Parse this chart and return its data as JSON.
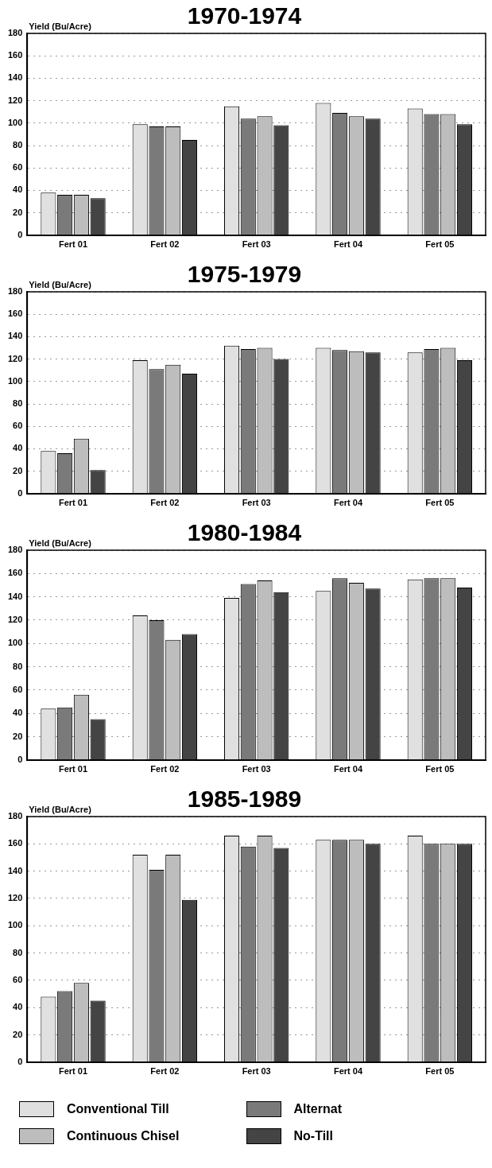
{
  "chart_data": [
    {
      "type": "bar",
      "title": "1970-1974",
      "ylabel": "Yield (Bu/Acre)",
      "categories": [
        "Fert 01",
        "Fert 02",
        "Fert 03",
        "Fert 04",
        "Fert 05"
      ],
      "ylim": [
        0,
        180
      ],
      "yticks": [
        0,
        20,
        40,
        60,
        80,
        100,
        120,
        140,
        160,
        180
      ],
      "grid": "y",
      "legend": false,
      "series": [
        {
          "color": "#e0e0e0",
          "values": [
            38,
            99,
            115,
            118,
            113
          ]
        },
        {
          "color": "#7a7a7a",
          "values": [
            36,
            97,
            104,
            109,
            108
          ]
        },
        {
          "color": "#bdbdbd",
          "values": [
            36,
            97,
            106,
            106,
            108
          ]
        },
        {
          "color": "#444444",
          "values": [
            33,
            85,
            98,
            104,
            99
          ]
        }
      ]
    },
    {
      "type": "bar",
      "title": "1975-1979",
      "ylabel": "Yield (Bu/Acre)",
      "categories": [
        "Fert 01",
        "Fert 02",
        "Fert 03",
        "Fert 04",
        "Fert 05"
      ],
      "ylim": [
        0,
        180
      ],
      "yticks": [
        0,
        20,
        40,
        60,
        80,
        100,
        120,
        140,
        160,
        180
      ],
      "grid": "y",
      "legend": false,
      "series": [
        {
          "color": "#e0e0e0",
          "values": [
            38,
            119,
            132,
            130,
            126
          ]
        },
        {
          "color": "#7a7a7a",
          "values": [
            36,
            111,
            129,
            128,
            129
          ]
        },
        {
          "color": "#bdbdbd",
          "values": [
            49,
            115,
            130,
            127,
            130
          ]
        },
        {
          "color": "#444444",
          "values": [
            21,
            107,
            120,
            126,
            119
          ]
        }
      ]
    },
    {
      "type": "bar",
      "title": "1980-1984",
      "ylabel": "Yield (Bu/Acre)",
      "categories": [
        "Fert 01",
        "Fert 02",
        "Fert 03",
        "Fert 04",
        "Fert 05"
      ],
      "ylim": [
        0,
        180
      ],
      "yticks": [
        0,
        20,
        40,
        60,
        80,
        100,
        120,
        140,
        160,
        180
      ],
      "grid": "y",
      "legend": false,
      "series": [
        {
          "color": "#e0e0e0",
          "values": [
            44,
            124,
            139,
            145,
            155
          ]
        },
        {
          "color": "#7a7a7a",
          "values": [
            45,
            120,
            151,
            156,
            156
          ]
        },
        {
          "color": "#bdbdbd",
          "values": [
            56,
            103,
            154,
            152,
            156
          ]
        },
        {
          "color": "#444444",
          "values": [
            35,
            108,
            144,
            147,
            148
          ]
        }
      ]
    },
    {
      "type": "bar",
      "title": "1985-1989",
      "ylabel": "Yield (Bu/Acre)",
      "categories": [
        "Fert 01",
        "Fert 02",
        "Fert 03",
        "Fert 04",
        "Fert 05"
      ],
      "ylim": [
        0,
        180
      ],
      "yticks": [
        0,
        20,
        40,
        60,
        80,
        100,
        120,
        140,
        160,
        180
      ],
      "grid": "y",
      "legend": "bottom",
      "series": [
        {
          "name": "Conventional Till",
          "color": "#e0e0e0",
          "values": [
            48,
            152,
            166,
            163,
            166
          ]
        },
        {
          "name": "Alternat",
          "color": "#7a7a7a",
          "values": [
            52,
            141,
            158,
            163,
            160
          ]
        },
        {
          "name": "Continuous Chisel",
          "color": "#bdbdbd",
          "values": [
            58,
            152,
            166,
            163,
            160
          ]
        },
        {
          "name": "No-Till",
          "color": "#444444",
          "values": [
            45,
            119,
            157,
            160,
            160
          ]
        }
      ]
    }
  ]
}
